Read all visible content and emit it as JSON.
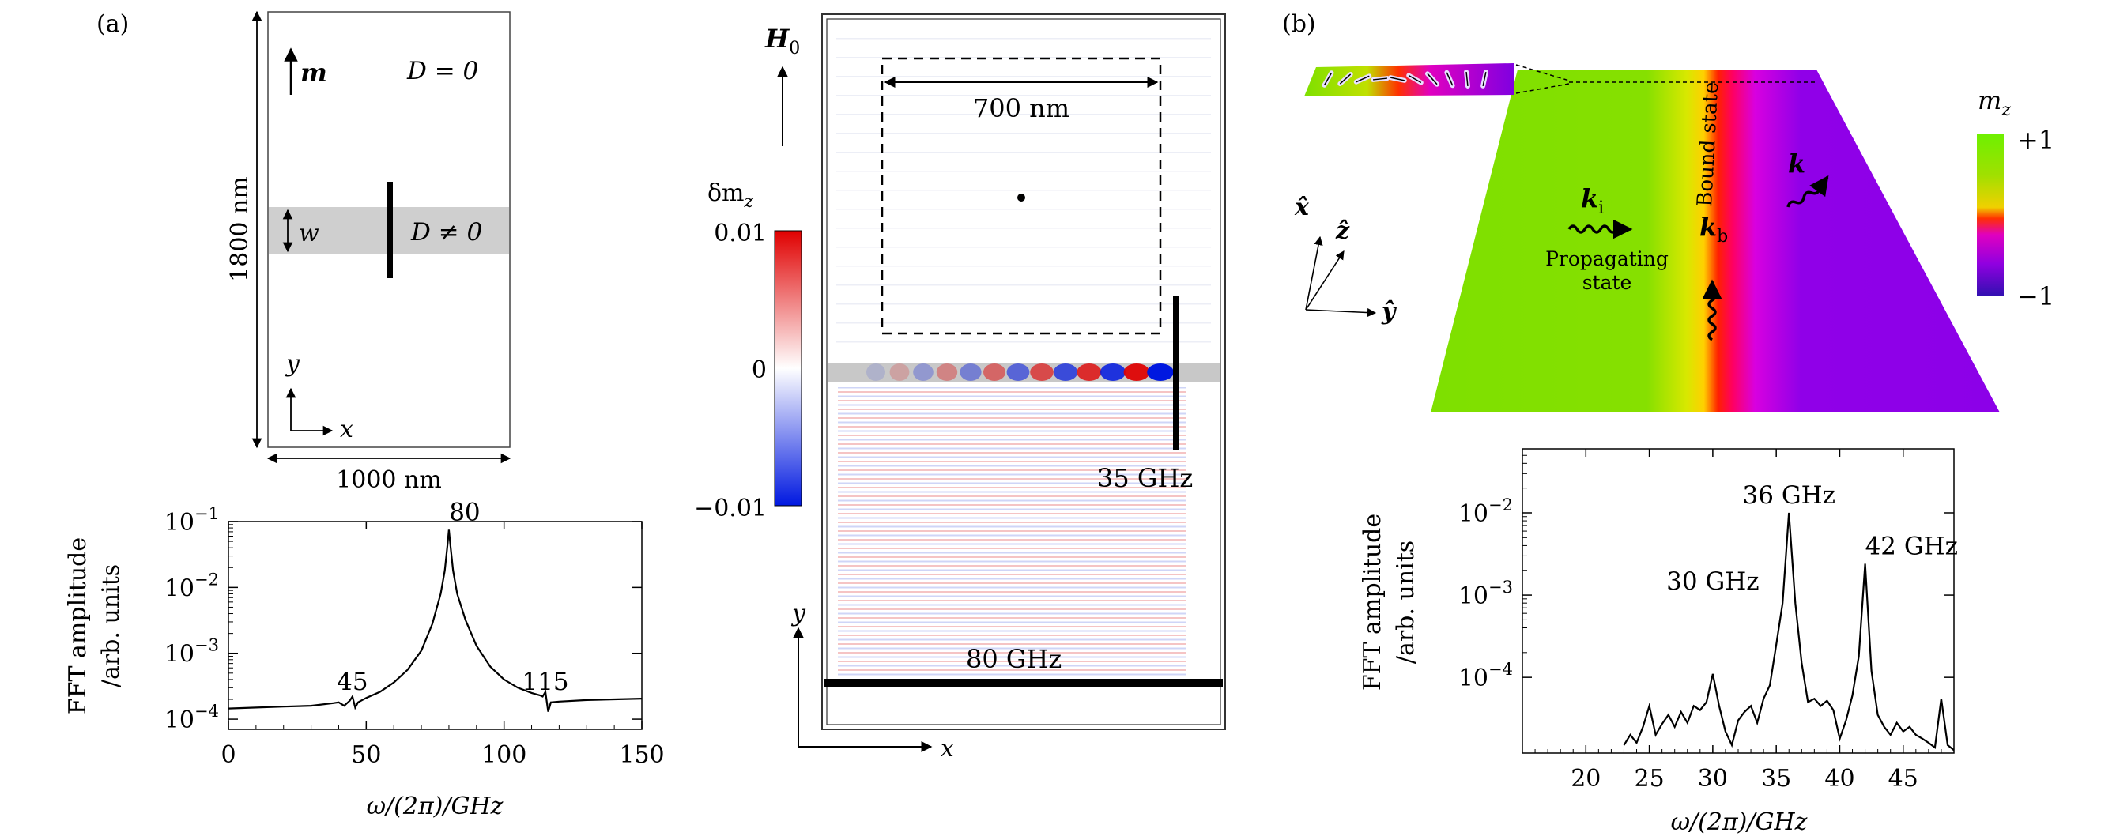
{
  "panel_labels": {
    "a": "(a)",
    "b": "(b)"
  },
  "schematic": {
    "m_label": "m",
    "d_zero": "D = 0",
    "d_nonzero": "D ≠ 0",
    "w_label": "w",
    "height_label": "1800 nm",
    "width_label": "1000 nm",
    "y_axis": "y",
    "x_axis": "x"
  },
  "snapshot": {
    "field_label": "H",
    "field_sub": "0",
    "box_width": "700 nm",
    "colorbar_title": "δm",
    "colorbar_sub": "z",
    "cb_max": "0.01",
    "cb_mid": "0",
    "cb_min": "−0.01",
    "freq_top": "35 GHz",
    "freq_bottom": "80 GHz",
    "y_axis": "y",
    "x_axis": "x",
    "colors": {
      "red": "#e00000",
      "blue": "#0018e0",
      "gray": "#c8c8c8"
    }
  },
  "strip3d": {
    "axis_x": "x̂",
    "axis_z": "ẑ",
    "axis_y": "ŷ",
    "bound_state": "Bound state",
    "ki": "k",
    "ki_sub": "i",
    "kb": "k",
    "kb_sub": "b",
    "k": "k",
    "propagating_line1": "Propagating",
    "propagating_line2": "state",
    "colorbar_title": "m",
    "colorbar_sub": "z",
    "cb_max": "+1",
    "cb_min": "−1",
    "colors": {
      "green": "#7ee000",
      "yellow": "#f0e000",
      "red": "#ff1000",
      "magenta": "#d000d0",
      "purple": "#8000e0",
      "indigo": "#4010c0"
    }
  },
  "chart_data": [
    {
      "type": "line",
      "ylabel_line1": "FFT amplitude",
      "ylabel_line2": "/arb. units",
      "xlabel": "ω/(2π)/GHz",
      "xlim": [
        0,
        150
      ],
      "ylim": [
        7e-05,
        0.1
      ],
      "yscale": "log",
      "xticks": [
        "0",
        "50",
        "100",
        "150"
      ],
      "yticks": [
        {
          "base": "10",
          "exp": "−1",
          "value": 0.1
        },
        {
          "base": "10",
          "exp": "−2",
          "value": 0.01
        },
        {
          "base": "10",
          "exp": "−3",
          "value": 0.001
        },
        {
          "base": "10",
          "exp": "−4",
          "value": 0.0001
        }
      ],
      "annotations": [
        {
          "text": "80",
          "x": 80,
          "y": 0.075
        },
        {
          "text": "45",
          "x": 45,
          "y": 0.0002
        },
        {
          "text": "115",
          "x": 115,
          "y": 0.0002
        }
      ],
      "x": [
        0,
        10,
        20,
        30,
        38,
        40,
        42,
        44,
        45,
        46,
        47,
        50,
        55,
        60,
        65,
        70,
        74,
        77,
        78.5,
        79.5,
        80,
        80.5,
        81.5,
        83,
        86,
        90,
        95,
        100,
        105,
        110,
        113,
        114,
        115,
        116,
        117,
        120,
        130,
        140,
        150
      ],
      "y": [
        0.000145,
        0.00015,
        0.000155,
        0.00016,
        0.000175,
        0.00018,
        0.00016,
        0.00019,
        0.00022,
        0.00015,
        0.00018,
        0.00021,
        0.00026,
        0.00036,
        0.00056,
        0.0011,
        0.0028,
        0.008,
        0.018,
        0.045,
        0.075,
        0.045,
        0.018,
        0.008,
        0.0032,
        0.0013,
        0.00063,
        0.0004,
        0.0003,
        0.00025,
        0.00023,
        0.00022,
        0.00026,
        0.00013,
        0.00018,
        0.000185,
        0.000195,
        0.0002,
        0.000205
      ]
    },
    {
      "type": "line",
      "ylabel_line1": "FFT amplitude",
      "ylabel_line2": "/arb. units",
      "xlabel": "ω/(2π)/GHz",
      "xlim": [
        15,
        49
      ],
      "ylim": [
        1.2e-05,
        0.06
      ],
      "yscale": "log",
      "xticks": [
        "20",
        "25",
        "30",
        "35",
        "40",
        "45"
      ],
      "yticks": [
        {
          "base": "10",
          "exp": "−2",
          "value": 0.01
        },
        {
          "base": "10",
          "exp": "−3",
          "value": 0.001
        },
        {
          "base": "10",
          "exp": "−4",
          "value": 0.0001
        }
      ],
      "annotations": [
        {
          "text": "36 GHz",
          "x": 36,
          "y": 0.01
        },
        {
          "text": "30 GHz",
          "x": 30,
          "y": 0.0009
        },
        {
          "text": "42 GHz",
          "x": 42,
          "y": 0.0024
        }
      ],
      "x": [
        23,
        23.5,
        24,
        24.5,
        25,
        25.5,
        26,
        26.5,
        27,
        27.5,
        28,
        28.5,
        29,
        29.5,
        30,
        30.5,
        31,
        31.5,
        32,
        32.5,
        33,
        33.5,
        34,
        34.5,
        35,
        35.5,
        36,
        36.5,
        37,
        37.5,
        38,
        38.5,
        39,
        39.5,
        40,
        40.5,
        41,
        41.5,
        42,
        42.5,
        43,
        43.5,
        44,
        44.5,
        45,
        45.5,
        46,
        46.5,
        47,
        47.5,
        48,
        48.5,
        49
      ],
      "y": [
        1.5e-05,
        2e-05,
        1.6e-05,
        2.5e-05,
        4.5e-05,
        2e-05,
        2.7e-05,
        3.5e-05,
        2.5e-05,
        3.8e-05,
        2.8e-05,
        4.5e-05,
        4e-05,
        5e-05,
        0.00011,
        4.5e-05,
        2.2e-05,
        1.5e-05,
        3e-05,
        3.8e-05,
        4.5e-05,
        2.8e-05,
        5.5e-05,
        8e-05,
        0.00025,
        0.0008,
        0.01,
        0.0008,
        0.00015,
        5e-05,
        5.5e-05,
        4.5e-05,
        5.2e-05,
        4e-05,
        1.8e-05,
        3e-05,
        6e-05,
        0.00018,
        0.0024,
        0.00012,
        3.5e-05,
        2.5e-05,
        2e-05,
        2.8e-05,
        2.2e-05,
        2.5e-05,
        2e-05,
        1.8e-05,
        1.6e-05,
        1.4e-05,
        5.5e-05,
        1.5e-05,
        1.3e-05
      ]
    }
  ]
}
